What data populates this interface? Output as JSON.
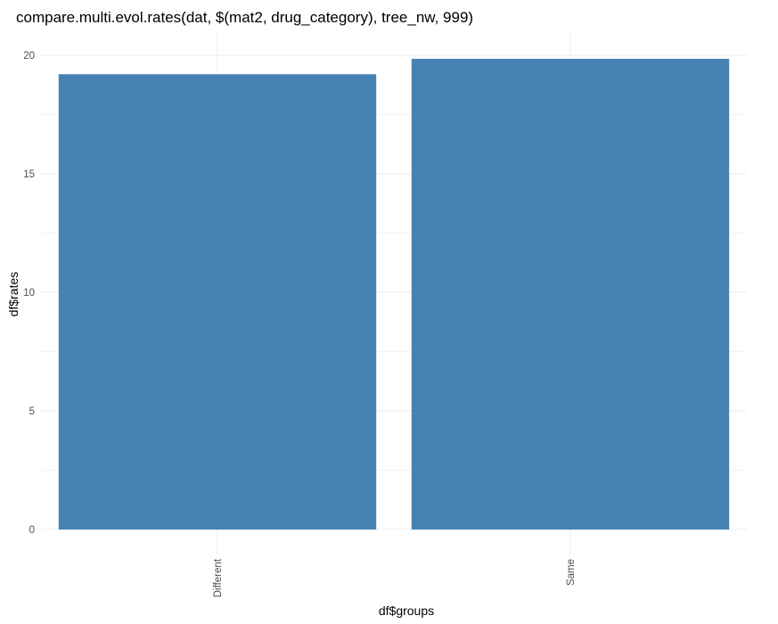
{
  "chart_data": {
    "type": "bar",
    "title": "compare.multi.evol.rates(dat, $(mat2, drug_category), tree_nw, 999)",
    "xlabel": "df$groups",
    "ylabel": "df$rates",
    "categories": [
      "Different",
      "Same"
    ],
    "values": [
      19.2,
      19.85
    ],
    "ylim": [
      0,
      20.5
    ],
    "yticks": [
      0,
      5,
      10,
      15,
      20
    ],
    "grid": true,
    "bar_color": "#4682B4",
    "x_tick_rotation": "vertical"
  }
}
